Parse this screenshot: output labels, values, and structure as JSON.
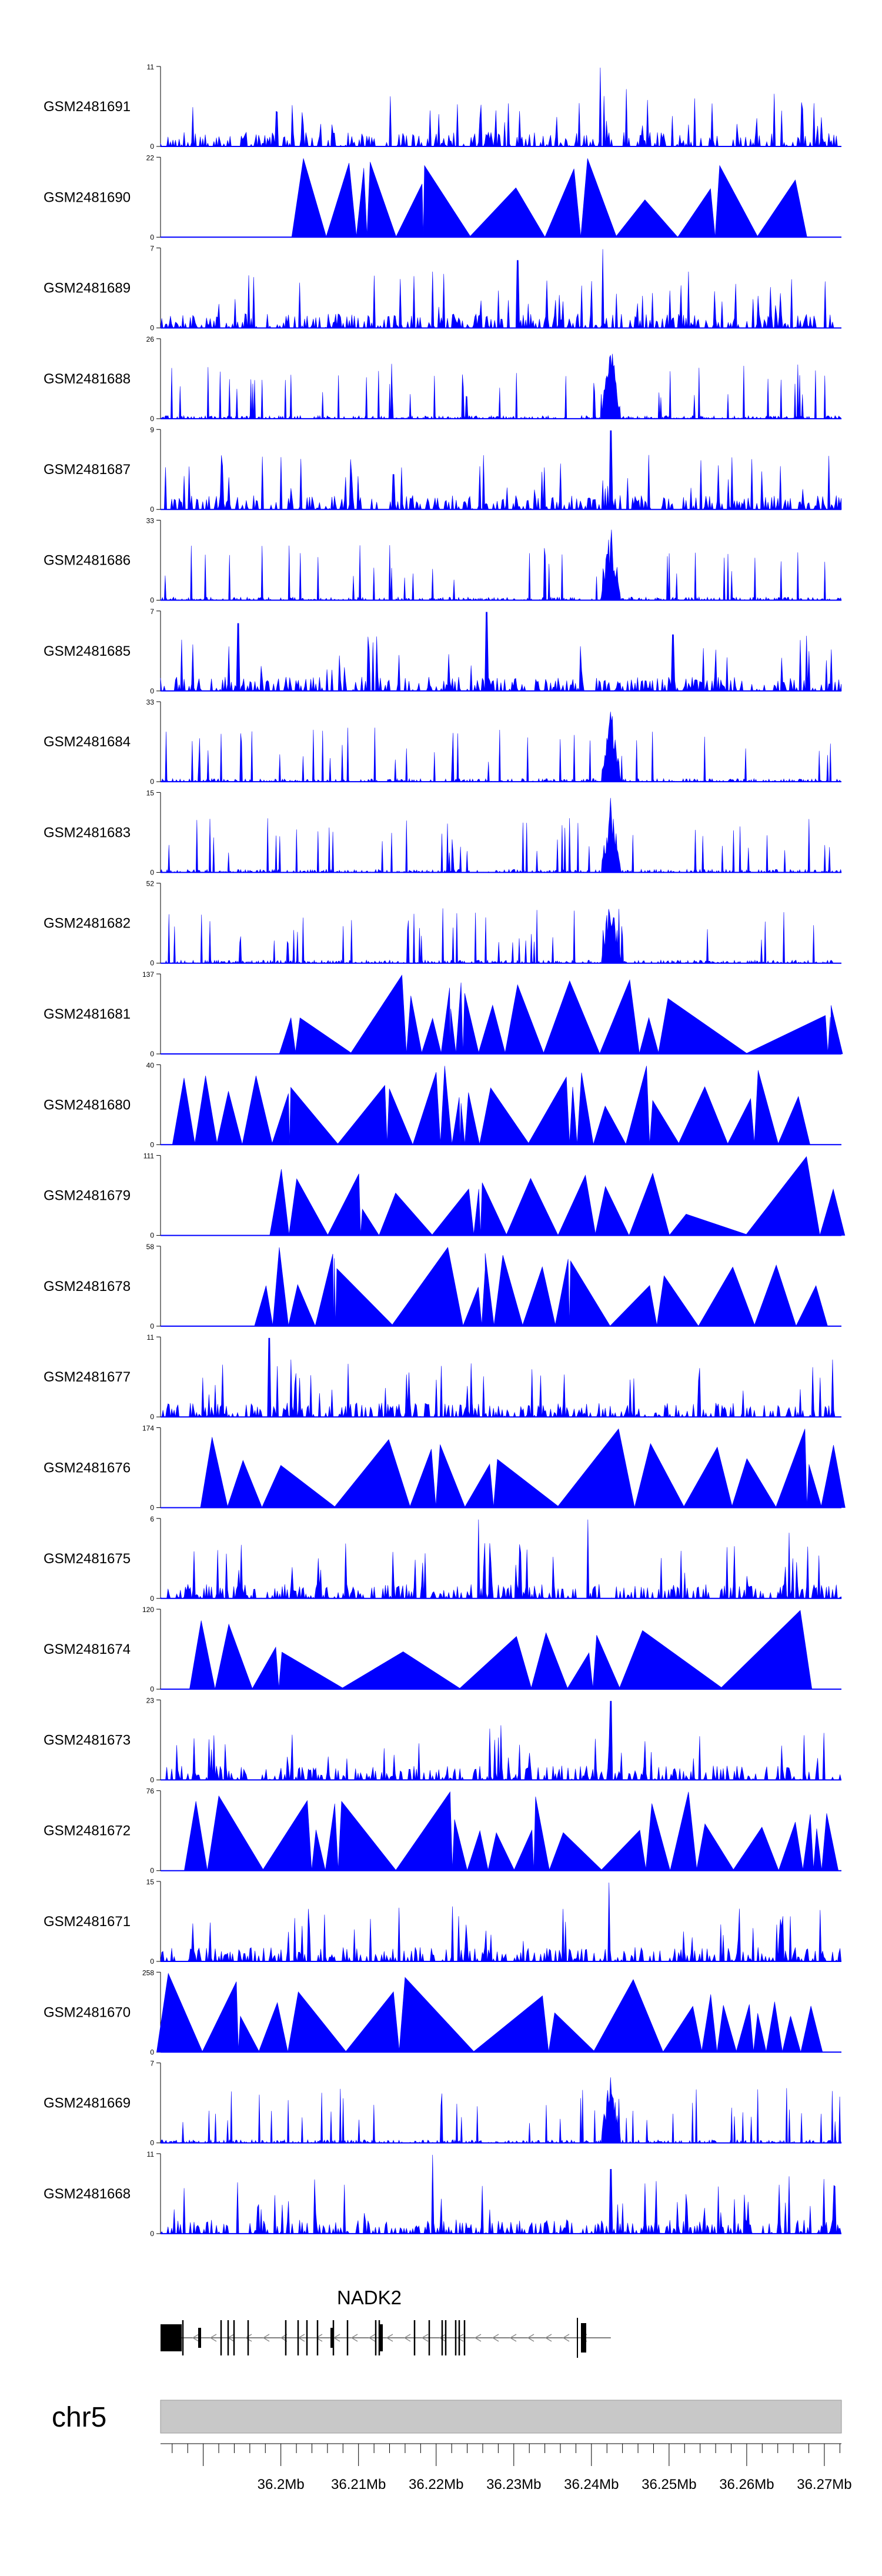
{
  "chart_data": {
    "type": "area",
    "title": "",
    "chromosome": "chr5",
    "fill_color": "#0000ff",
    "x_range_mb": [
      36.1845,
      36.2722
    ],
    "x_ticks": [
      {
        "label": "36.2Mb",
        "value": 36.2
      },
      {
        "label": "36.21Mb",
        "value": 36.21
      },
      {
        "label": "36.22Mb",
        "value": 36.22
      },
      {
        "label": "36.23Mb",
        "value": 36.23
      },
      {
        "label": "36.24Mb",
        "value": 36.24
      },
      {
        "label": "36.25Mb",
        "value": 36.25
      },
      {
        "label": "36.26Mb",
        "value": 36.26
      },
      {
        "label": "36.27Mb",
        "value": 36.27
      }
    ],
    "gene": {
      "name": "NADK2",
      "start_mb": 36.1845,
      "end_mb": 36.2425,
      "strand": "-"
    },
    "tracks": [
      {
        "name": "GSM2481691",
        "ymax": "11",
        "ymin": "0",
        "kind": "spiky",
        "peaks": [
          [
            36.2141,
            7
          ],
          [
            36.2256,
            4
          ],
          [
            36.2412,
            11
          ],
          [
            36.2445,
            8
          ],
          [
            36.2555,
            6
          ],
          [
            36.2645,
            5
          ]
        ]
      },
      {
        "name": "GSM2481690",
        "ymax": "22",
        "ymin": "0",
        "kind": "sparse",
        "peaks": [
          [
            36.2029,
            22
          ],
          [
            36.2115,
            21
          ],
          [
            36.2185,
            20
          ],
          [
            36.2395,
            22
          ]
        ]
      },
      {
        "name": "GSM2481689",
        "ymax": "7",
        "ymin": "0",
        "kind": "spiky",
        "peaks": [
          [
            36.2414,
            7
          ],
          [
            36.2195,
            5
          ],
          [
            36.2305,
            6
          ],
          [
            36.2525,
            5
          ]
        ]
      },
      {
        "name": "GSM2481688",
        "ymax": "26",
        "ymin": "0",
        "kind": "peak",
        "peaks": [
          [
            36.2425,
            26
          ]
        ]
      },
      {
        "name": "GSM2481687",
        "ymax": "9",
        "ymin": "0",
        "kind": "spiky",
        "peaks": [
          [
            36.2425,
            9
          ],
          [
            36.1925,
            5
          ],
          [
            36.2145,
            4
          ]
        ]
      },
      {
        "name": "GSM2481686",
        "ymax": "33",
        "ymin": "0",
        "kind": "peak",
        "peaks": [
          [
            36.2425,
            33
          ]
        ]
      },
      {
        "name": "GSM2481685",
        "ymax": "7",
        "ymin": "0",
        "kind": "spiky",
        "peaks": [
          [
            36.2265,
            7
          ],
          [
            36.1945,
            6
          ],
          [
            36.2505,
            5
          ]
        ]
      },
      {
        "name": "GSM2481684",
        "ymax": "33",
        "ymin": "0",
        "kind": "peak",
        "peaks": [
          [
            36.2425,
            33
          ]
        ]
      },
      {
        "name": "GSM2481683",
        "ymax": "15",
        "ymin": "0",
        "kind": "peak",
        "peaks": [
          [
            36.2425,
            15
          ]
        ]
      },
      {
        "name": "GSM2481682",
        "ymax": "52",
        "ymin": "0",
        "kind": "peak",
        "peaks": [
          [
            36.2425,
            52
          ]
        ]
      },
      {
        "name": "GSM2481681",
        "ymax": "137",
        "ymin": "0",
        "kind": "sparse",
        "peaks": [
          [
            36.2013,
            63
          ],
          [
            36.2156,
            137
          ],
          [
            36.2474,
            63
          ]
        ]
      },
      {
        "name": "GSM2481680",
        "ymax": "40",
        "ymin": "0",
        "kind": "sparse",
        "peaks": [
          [
            36.1903,
            35
          ],
          [
            36.1968,
            35
          ],
          [
            36.2211,
            40
          ],
          [
            36.2471,
            40
          ]
        ]
      },
      {
        "name": "GSM2481679",
        "ymax": "111",
        "ymin": "0",
        "kind": "sparse",
        "peaks": [
          [
            36.2105,
            37
          ],
          [
            36.2418,
            69
          ],
          [
            36.2522,
            30
          ],
          [
            36.2677,
            111
          ]
        ]
      },
      {
        "name": "GSM2481678",
        "ymax": "58",
        "ymin": "0",
        "kind": "sparse",
        "peaks": [
          [
            36.1998,
            58
          ],
          [
            36.2215,
            58
          ],
          [
            36.2475,
            30
          ]
        ]
      },
      {
        "name": "GSM2481677",
        "ymax": "11",
        "ymin": "0",
        "kind": "spiky",
        "peaks": [
          [
            36.1985,
            11
          ],
          [
            36.2013,
            8
          ],
          [
            36.2711,
            8
          ]
        ]
      },
      {
        "name": "GSM2481676",
        "ymax": "174",
        "ymin": "0",
        "kind": "sparse",
        "peaks": [
          [
            36.2435,
            174
          ],
          [
            36.2675,
            174
          ]
        ]
      },
      {
        "name": "GSM2481675",
        "ymax": "6",
        "ymin": "0",
        "kind": "spiky",
        "peaks": [
          [
            36.2255,
            6
          ],
          [
            36.2395,
            6
          ],
          [
            36.2655,
            5
          ]
        ]
      },
      {
        "name": "GSM2481674",
        "ymax": "120",
        "ymin": "0",
        "kind": "sparse",
        "peaks": [
          [
            36.2669,
            120
          ]
        ]
      },
      {
        "name": "GSM2481673",
        "ymax": "23",
        "ymin": "0",
        "kind": "spiky",
        "peaks": [
          [
            36.2425,
            23
          ],
          [
            36.2405,
            12
          ],
          [
            36.2645,
            10
          ]
        ]
      },
      {
        "name": "GSM2481672",
        "ymax": "76",
        "ymin": "0",
        "kind": "sparse",
        "peaks": [
          [
            36.2218,
            76
          ],
          [
            36.2525,
            76
          ]
        ]
      },
      {
        "name": "GSM2481671",
        "ymax": "15",
        "ymin": "0",
        "kind": "spiky",
        "peaks": [
          [
            36.2422,
            15
          ],
          [
            36.2035,
            10
          ],
          [
            36.2638,
            7
          ]
        ]
      },
      {
        "name": "GSM2481670",
        "ymax": "258",
        "ymin": "0",
        "kind": "sparse",
        "peaks": [
          [
            36.1855,
            258
          ],
          [
            36.2656,
            115
          ]
        ]
      },
      {
        "name": "GSM2481669",
        "ymax": "7",
        "ymin": "0",
        "kind": "peak",
        "peaks": [
          [
            36.2425,
            7
          ]
        ]
      },
      {
        "name": "GSM2481668",
        "ymax": "11",
        "ymin": "0",
        "kind": "spiky",
        "peaks": [
          [
            36.2195,
            11
          ],
          [
            36.2425,
            9
          ],
          [
            36.2655,
            8
          ]
        ]
      }
    ]
  }
}
